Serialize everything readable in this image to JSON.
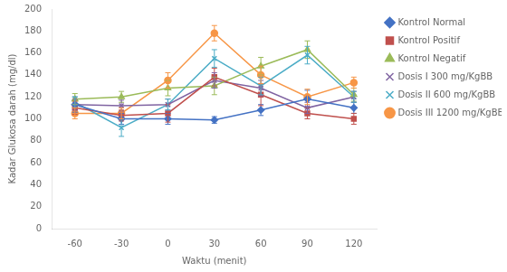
{
  "chart_data": {
    "type": "line",
    "xlabel": "Waktu (menit)",
    "ylabel": "Kadar Glukosa darah (mg/dl)",
    "x": [
      -60,
      -30,
      0,
      30,
      60,
      90,
      120
    ],
    "series": [
      {
        "name": "Kontrol Normal",
        "color": "#4472C4",
        "marker": "diamond",
        "values": [
          113,
          100,
          100,
          99,
          108,
          118,
          110
        ],
        "yerr": [
          7,
          5,
          5,
          3,
          5,
          8,
          5
        ]
      },
      {
        "name": "Kontrol Positif",
        "color": "#C0504D",
        "marker": "square",
        "values": [
          110,
          103,
          105,
          138,
          122,
          105,
          100
        ],
        "yerr": [
          6,
          5,
          8,
          8,
          10,
          5,
          5
        ]
      },
      {
        "name": "Kontrol Negatif",
        "color": "#9BBB59",
        "marker": "triangle",
        "values": [
          118,
          120,
          128,
          130,
          148,
          163,
          122
        ],
        "yerr": [
          5,
          5,
          7,
          8,
          8,
          8,
          6
        ]
      },
      {
        "name": "Dosis I 300 mg/KgBB",
        "color": "#8064A2",
        "marker": "x",
        "values": [
          113,
          112,
          113,
          135,
          128,
          110,
          120
        ],
        "yerr": [
          5,
          5,
          5,
          7,
          7,
          5,
          5
        ]
      },
      {
        "name": "Dosis II 600 mg/KgBB",
        "color": "#4BACC6",
        "marker": "x",
        "values": [
          115,
          92,
          113,
          155,
          130,
          158,
          120
        ],
        "yerr": [
          5,
          8,
          5,
          8,
          8,
          8,
          5
        ]
      },
      {
        "name": "Dosis III 1200 mg/KgBB",
        "color": "#F79646",
        "marker": "circle",
        "values": [
          105,
          105,
          135,
          178,
          140,
          120,
          133
        ],
        "yerr": [
          5,
          5,
          7,
          7,
          8,
          7,
          5
        ]
      }
    ],
    "xlim": [
      -75,
      135
    ],
    "xticks": [
      -60,
      -30,
      0,
      30,
      60,
      90,
      120
    ],
    "ylim": [
      0,
      200
    ],
    "yticks": [
      0,
      20,
      40,
      60,
      80,
      100,
      120,
      140,
      160,
      180,
      200
    ],
    "grid": false,
    "legend": "right"
  }
}
